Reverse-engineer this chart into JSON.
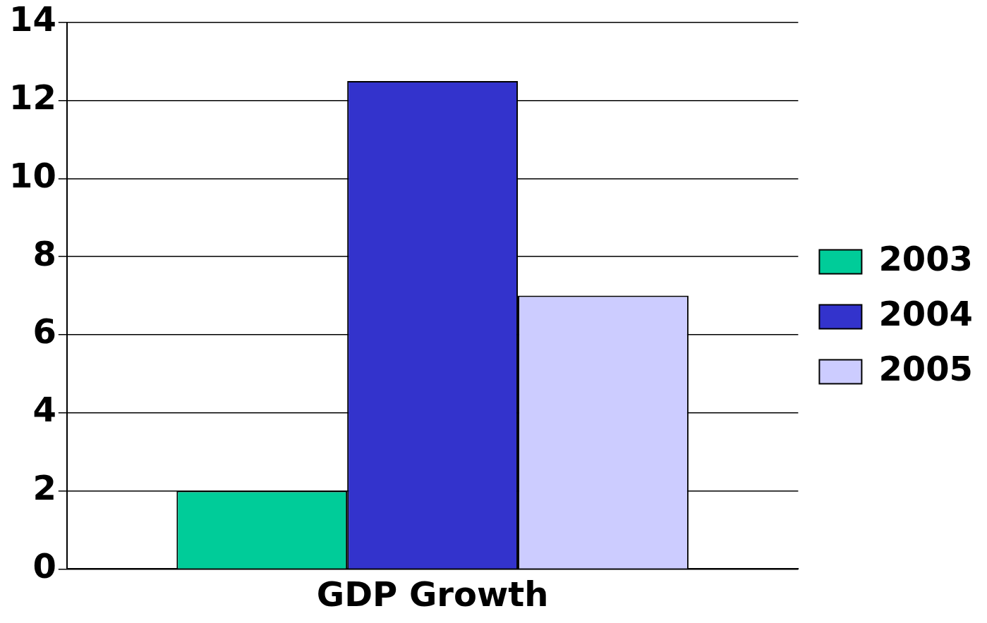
{
  "chart_data": {
    "type": "bar",
    "categories": [
      "GDP Growth"
    ],
    "series": [
      {
        "name": "2003",
        "color": "#00cc99",
        "values": [
          2
        ]
      },
      {
        "name": "2004",
        "color": "#3333cc",
        "values": [
          12.5
        ]
      },
      {
        "name": "2005",
        "color": "#ccccff",
        "values": [
          7
        ]
      }
    ],
    "ylim": [
      0,
      14
    ],
    "yticks": [
      0,
      2,
      4,
      6,
      8,
      10,
      12,
      14
    ],
    "grid": "y",
    "legend": "right"
  }
}
